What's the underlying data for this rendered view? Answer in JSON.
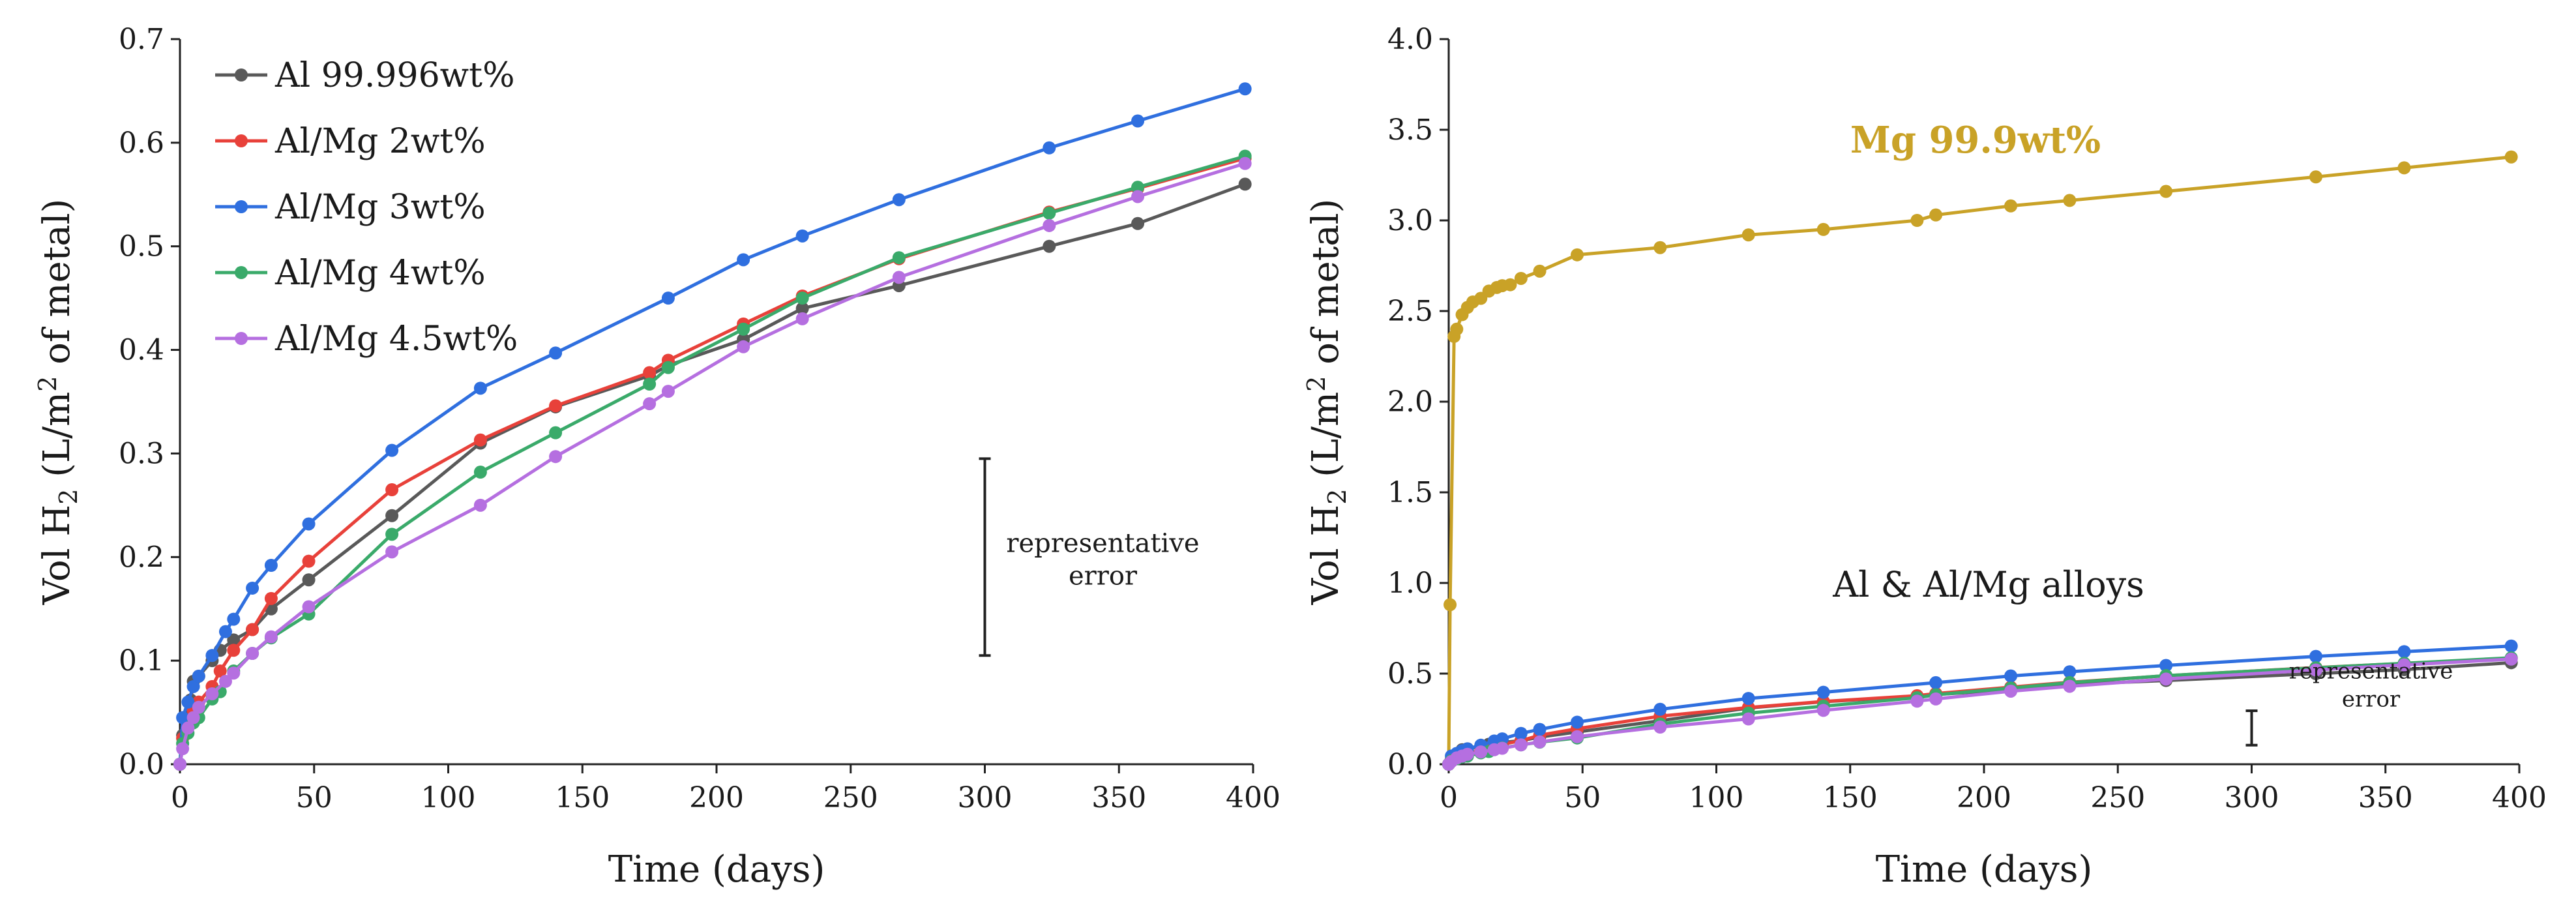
{
  "chart_data": [
    {
      "type": "line",
      "title": "",
      "xlabel": "Time (days)",
      "ylabel_prefix": "Vol H",
      "ylabel_sub": "2",
      "ylabel_mid": " (L/m",
      "ylabel_sup": "2",
      "ylabel_suffix": " of metal)",
      "xlim": [
        0,
        400
      ],
      "ylim": [
        0,
        0.7
      ],
      "x_ticks": [
        "0",
        "50",
        "100",
        "150",
        "200",
        "250",
        "300",
        "350",
        "400"
      ],
      "y_ticks": [
        "0.0",
        "0.1",
        "0.2",
        "0.3",
        "0.4",
        "0.5",
        "0.6",
        "0.7"
      ],
      "legend_position": "top-left",
      "grid": false,
      "annotation": {
        "lines": [
          "representative",
          "error"
        ],
        "x": 300,
        "y_low": 0.105,
        "y_high": 0.295
      },
      "series": [
        {
          "name": "Al 99.996wt%",
          "color": "#595959",
          "points": [
            [
              0,
              0
            ],
            [
              1,
              0.028
            ],
            [
              2,
              0.045
            ],
            [
              4,
              0.062
            ],
            [
              5,
              0.08
            ],
            [
              7,
              0.085
            ],
            [
              12,
              0.1
            ],
            [
              15,
              0.11
            ],
            [
              20,
              0.12
            ],
            [
              27,
              0.13
            ],
            [
              34,
              0.15
            ],
            [
              48,
              0.178
            ],
            [
              79,
              0.24
            ],
            [
              112,
              0.31
            ],
            [
              140,
              0.345
            ],
            [
              175,
              0.375
            ],
            [
              182,
              0.385
            ],
            [
              210,
              0.41
            ],
            [
              232,
              0.44
            ],
            [
              268,
              0.462
            ],
            [
              324,
              0.5
            ],
            [
              357,
              0.522
            ],
            [
              397,
              0.56
            ]
          ]
        },
        {
          "name": "Al/Mg 2wt%",
          "color": "#e8413a",
          "points": [
            [
              0,
              0
            ],
            [
              1,
              0.025
            ],
            [
              3,
              0.04
            ],
            [
              5,
              0.052
            ],
            [
              7,
              0.06
            ],
            [
              12,
              0.075
            ],
            [
              15,
              0.09
            ],
            [
              20,
              0.11
            ],
            [
              27,
              0.13
            ],
            [
              34,
              0.16
            ],
            [
              48,
              0.196
            ],
            [
              79,
              0.265
            ],
            [
              112,
              0.313
            ],
            [
              140,
              0.346
            ],
            [
              175,
              0.378
            ],
            [
              182,
              0.39
            ],
            [
              210,
              0.425
            ],
            [
              232,
              0.452
            ],
            [
              268,
              0.488
            ],
            [
              324,
              0.533
            ],
            [
              357,
              0.556
            ],
            [
              397,
              0.585
            ]
          ]
        },
        {
          "name": "Al/Mg 3wt%",
          "color": "#2f6fdf",
          "points": [
            [
              0,
              0
            ],
            [
              1,
              0.045
            ],
            [
              3,
              0.06
            ],
            [
              5,
              0.075
            ],
            [
              7,
              0.085
            ],
            [
              12,
              0.105
            ],
            [
              17,
              0.128
            ],
            [
              20,
              0.14
            ],
            [
              27,
              0.17
            ],
            [
              34,
              0.192
            ],
            [
              48,
              0.232
            ],
            [
              79,
              0.303
            ],
            [
              112,
              0.363
            ],
            [
              140,
              0.397
            ],
            [
              182,
              0.45
            ],
            [
              210,
              0.487
            ],
            [
              232,
              0.51
            ],
            [
              268,
              0.545
            ],
            [
              324,
              0.595
            ],
            [
              357,
              0.621
            ],
            [
              397,
              0.652
            ]
          ]
        },
        {
          "name": "Al/Mg 4wt%",
          "color": "#3aaa6a",
          "points": [
            [
              0,
              0
            ],
            [
              1,
              0.02
            ],
            [
              3,
              0.03
            ],
            [
              5,
              0.04
            ],
            [
              7,
              0.045
            ],
            [
              12,
              0.063
            ],
            [
              15,
              0.07
            ],
            [
              20,
              0.09
            ],
            [
              27,
              0.107
            ],
            [
              34,
              0.122
            ],
            [
              48,
              0.145
            ],
            [
              79,
              0.222
            ],
            [
              112,
              0.282
            ],
            [
              140,
              0.32
            ],
            [
              175,
              0.367
            ],
            [
              182,
              0.383
            ],
            [
              210,
              0.42
            ],
            [
              232,
              0.45
            ],
            [
              268,
              0.489
            ],
            [
              324,
              0.532
            ],
            [
              357,
              0.557
            ],
            [
              397,
              0.587
            ]
          ]
        },
        {
          "name": "Al/Mg 4.5wt%",
          "color": "#b56fe0",
          "points": [
            [
              0,
              0
            ],
            [
              1,
              0.015
            ],
            [
              3,
              0.035
            ],
            [
              5,
              0.045
            ],
            [
              7,
              0.055
            ],
            [
              12,
              0.068
            ],
            [
              17,
              0.08
            ],
            [
              20,
              0.088
            ],
            [
              27,
              0.107
            ],
            [
              34,
              0.123
            ],
            [
              48,
              0.152
            ],
            [
              79,
              0.205
            ],
            [
              112,
              0.25
            ],
            [
              140,
              0.297
            ],
            [
              175,
              0.348
            ],
            [
              182,
              0.36
            ],
            [
              210,
              0.403
            ],
            [
              232,
              0.43
            ],
            [
              268,
              0.47
            ],
            [
              324,
              0.52
            ],
            [
              357,
              0.548
            ],
            [
              397,
              0.58
            ]
          ]
        }
      ]
    },
    {
      "type": "line",
      "title": "",
      "xlabel": "Time (days)",
      "ylabel_prefix": "Vol H",
      "ylabel_sub": "2",
      "ylabel_mid": " (L/m",
      "ylabel_sup": "2",
      "ylabel_suffix": " of metal)",
      "xlim": [
        0,
        400
      ],
      "ylim": [
        0,
        4.0
      ],
      "x_ticks": [
        "0",
        "50",
        "100",
        "150",
        "200",
        "250",
        "300",
        "350",
        "400"
      ],
      "y_ticks": [
        "0.0",
        "0.5",
        "1.0",
        "1.5",
        "2.0",
        "2.5",
        "3.0",
        "3.5",
        "4.0"
      ],
      "grid": false,
      "series_label": "Mg 99.9wt%",
      "series_label_color": "#c9a227",
      "group_label": "Al & Al/Mg alloys",
      "annotation": {
        "lines": [
          "representative",
          "error"
        ],
        "x": 300,
        "y_low": 0.105,
        "y_high": 0.295
      },
      "series": [
        {
          "name": "Mg 99.9wt%",
          "color": "#c9a227",
          "points": [
            [
              0,
              0
            ],
            [
              0.5,
              0.88
            ],
            [
              2,
              2.36
            ],
            [
              3,
              2.4
            ],
            [
              5,
              2.48
            ],
            [
              7,
              2.52
            ],
            [
              9,
              2.55
            ],
            [
              12,
              2.57
            ],
            [
              15,
              2.61
            ],
            [
              18,
              2.63
            ],
            [
              20,
              2.64
            ],
            [
              23,
              2.645
            ],
            [
              27,
              2.68
            ],
            [
              34,
              2.72
            ],
            [
              48,
              2.81
            ],
            [
              79,
              2.85
            ],
            [
              112,
              2.92
            ],
            [
              140,
              2.95
            ],
            [
              175,
              3.0
            ],
            [
              182,
              3.03
            ],
            [
              210,
              3.08
            ],
            [
              232,
              3.11
            ],
            [
              268,
              3.16
            ],
            [
              324,
              3.24
            ],
            [
              357,
              3.29
            ],
            [
              397,
              3.35
            ]
          ]
        },
        {
          "name": "Al 99.996wt%",
          "color": "#595959",
          "points": [
            [
              0,
              0
            ],
            [
              1,
              0.028
            ],
            [
              2,
              0.045
            ],
            [
              4,
              0.062
            ],
            [
              5,
              0.08
            ],
            [
              7,
              0.085
            ],
            [
              12,
              0.1
            ],
            [
              15,
              0.11
            ],
            [
              20,
              0.12
            ],
            [
              27,
              0.13
            ],
            [
              34,
              0.15
            ],
            [
              48,
              0.178
            ],
            [
              79,
              0.24
            ],
            [
              112,
              0.31
            ],
            [
              140,
              0.345
            ],
            [
              175,
              0.375
            ],
            [
              182,
              0.385
            ],
            [
              210,
              0.41
            ],
            [
              232,
              0.44
            ],
            [
              268,
              0.462
            ],
            [
              324,
              0.5
            ],
            [
              357,
              0.522
            ],
            [
              397,
              0.56
            ]
          ]
        },
        {
          "name": "Al/Mg 2wt%",
          "color": "#e8413a",
          "points": [
            [
              0,
              0
            ],
            [
              1,
              0.025
            ],
            [
              3,
              0.04
            ],
            [
              5,
              0.052
            ],
            [
              7,
              0.06
            ],
            [
              12,
              0.075
            ],
            [
              15,
              0.09
            ],
            [
              20,
              0.11
            ],
            [
              27,
              0.13
            ],
            [
              34,
              0.16
            ],
            [
              48,
              0.196
            ],
            [
              79,
              0.265
            ],
            [
              112,
              0.313
            ],
            [
              140,
              0.346
            ],
            [
              175,
              0.378
            ],
            [
              182,
              0.39
            ],
            [
              210,
              0.425
            ],
            [
              232,
              0.452
            ],
            [
              268,
              0.488
            ],
            [
              324,
              0.533
            ],
            [
              357,
              0.556
            ],
            [
              397,
              0.585
            ]
          ]
        },
        {
          "name": "Al/Mg 3wt%",
          "color": "#2f6fdf",
          "points": [
            [
              0,
              0
            ],
            [
              1,
              0.045
            ],
            [
              3,
              0.06
            ],
            [
              5,
              0.075
            ],
            [
              7,
              0.085
            ],
            [
              12,
              0.105
            ],
            [
              17,
              0.128
            ],
            [
              20,
              0.14
            ],
            [
              27,
              0.17
            ],
            [
              34,
              0.192
            ],
            [
              48,
              0.232
            ],
            [
              79,
              0.303
            ],
            [
              112,
              0.363
            ],
            [
              140,
              0.397
            ],
            [
              182,
              0.45
            ],
            [
              210,
              0.487
            ],
            [
              232,
              0.51
            ],
            [
              268,
              0.545
            ],
            [
              324,
              0.595
            ],
            [
              357,
              0.621
            ],
            [
              397,
              0.652
            ]
          ]
        },
        {
          "name": "Al/Mg 4wt%",
          "color": "#3aaa6a",
          "points": [
            [
              0,
              0
            ],
            [
              1,
              0.02
            ],
            [
              3,
              0.03
            ],
            [
              5,
              0.04
            ],
            [
              7,
              0.045
            ],
            [
              12,
              0.063
            ],
            [
              15,
              0.07
            ],
            [
              20,
              0.09
            ],
            [
              27,
              0.107
            ],
            [
              34,
              0.122
            ],
            [
              48,
              0.145
            ],
            [
              79,
              0.222
            ],
            [
              112,
              0.282
            ],
            [
              140,
              0.32
            ],
            [
              175,
              0.367
            ],
            [
              182,
              0.383
            ],
            [
              210,
              0.42
            ],
            [
              232,
              0.45
            ],
            [
              268,
              0.489
            ],
            [
              324,
              0.532
            ],
            [
              357,
              0.557
            ],
            [
              397,
              0.587
            ]
          ]
        },
        {
          "name": "Al/Mg 4.5wt%",
          "color": "#b56fe0",
          "points": [
            [
              0,
              0
            ],
            [
              1,
              0.015
            ],
            [
              3,
              0.035
            ],
            [
              5,
              0.045
            ],
            [
              7,
              0.055
            ],
            [
              12,
              0.068
            ],
            [
              17,
              0.08
            ],
            [
              20,
              0.088
            ],
            [
              27,
              0.107
            ],
            [
              34,
              0.123
            ],
            [
              48,
              0.152
            ],
            [
              79,
              0.205
            ],
            [
              112,
              0.25
            ],
            [
              140,
              0.297
            ],
            [
              175,
              0.348
            ],
            [
              182,
              0.36
            ],
            [
              210,
              0.403
            ],
            [
              232,
              0.43
            ],
            [
              268,
              0.47
            ],
            [
              324,
              0.52
            ],
            [
              357,
              0.548
            ],
            [
              397,
              0.58
            ]
          ]
        }
      ]
    }
  ]
}
